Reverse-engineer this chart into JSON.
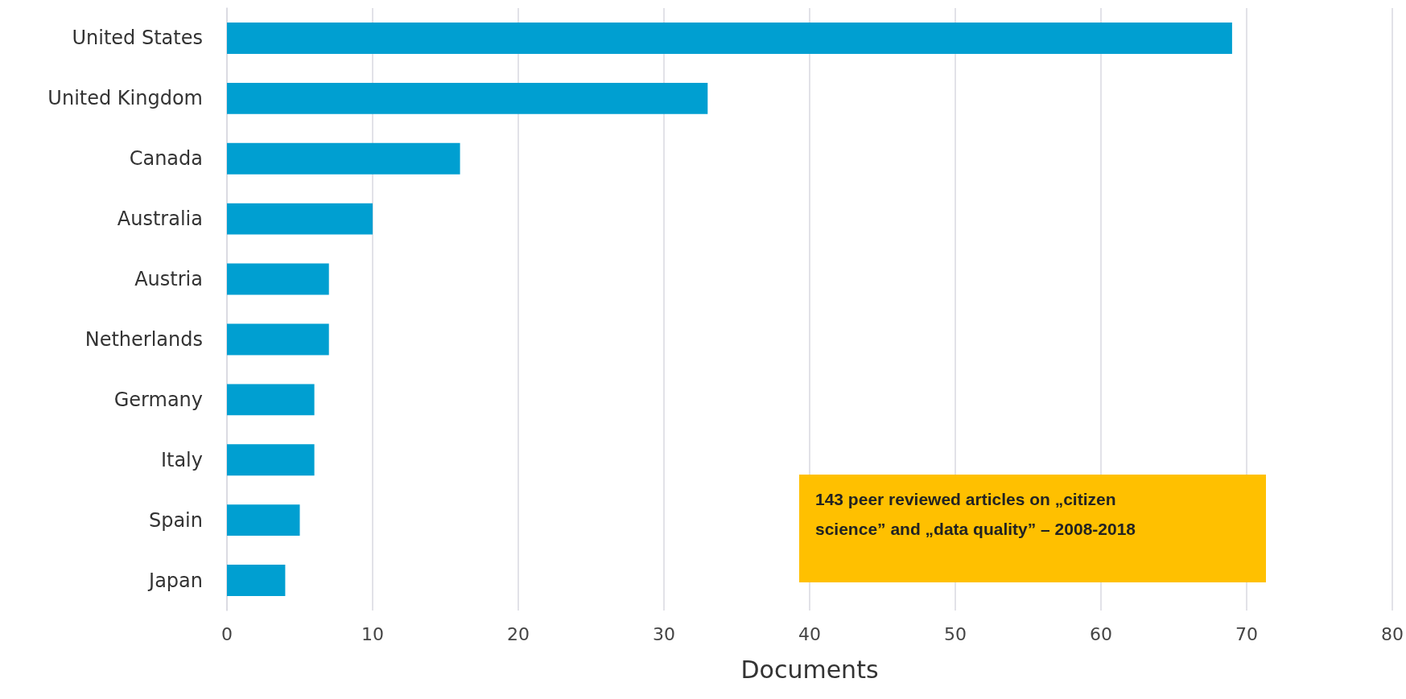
{
  "chart_data": {
    "type": "bar",
    "orientation": "horizontal",
    "xlabel": "Documents",
    "categories": [
      "United States",
      "United Kingdom",
      "Canada",
      "Australia",
      "Austria",
      "Netherlands",
      "Germany",
      "Italy",
      "Spain",
      "Japan"
    ],
    "values": [
      69,
      33,
      16,
      10,
      7,
      7,
      6,
      6,
      5,
      4
    ],
    "color": "#009fd1",
    "xlim": [
      0,
      80
    ],
    "xticks": [
      0,
      10,
      20,
      30,
      40,
      50,
      60,
      70,
      80
    ],
    "grid": "x",
    "annotations": [
      "143 peer reviewed articles on „citizen science” and „data quality” – 2008-2018"
    ]
  }
}
